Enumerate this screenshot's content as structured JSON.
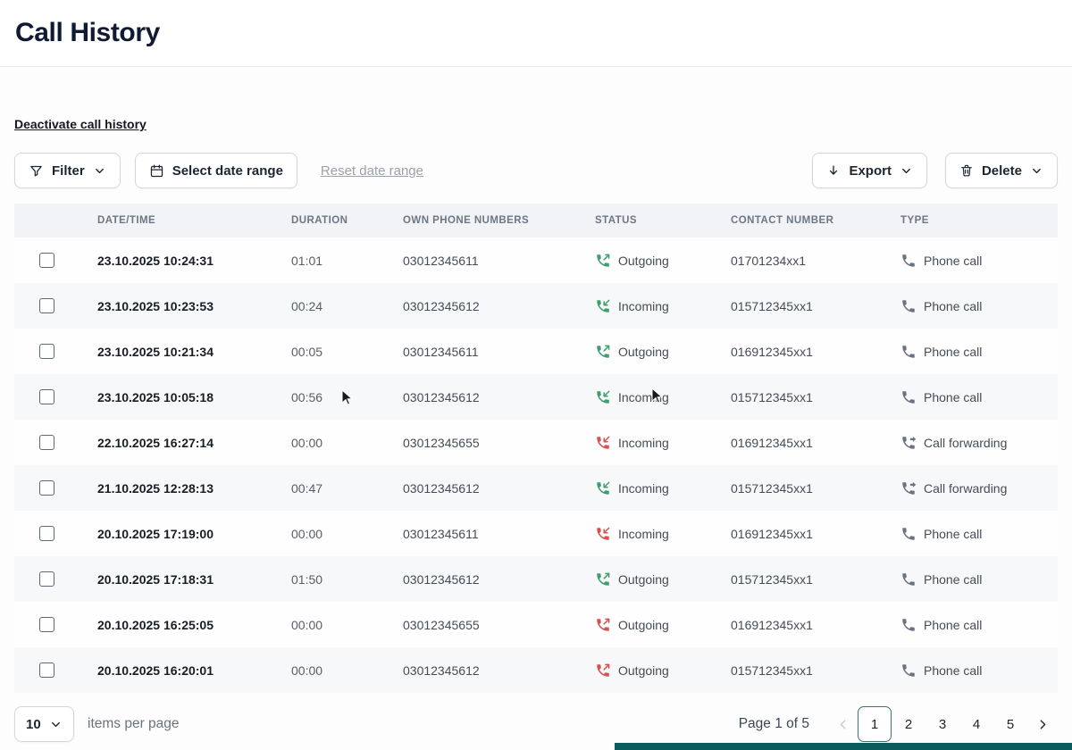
{
  "header": {
    "title": "Call History"
  },
  "actions": {
    "deactivate_link": "Deactivate call history",
    "filter": "Filter",
    "select_date_range": "Select date range",
    "reset_date_range": "Reset date range",
    "export": "Export",
    "delete": "Delete"
  },
  "table": {
    "columns": [
      "DATE/TIME",
      "DURATION",
      "OWN PHONE NUMBERS",
      "STATUS",
      "CONTACT NUMBER",
      "TYPE"
    ],
    "rows": [
      {
        "datetime": "23.10.2025 10:24:31",
        "duration": "01:01",
        "own_number": "03012345611",
        "status": "Outgoing",
        "direction": "outgoing",
        "status_color": "green",
        "contact_number": "01701234xx1",
        "type": "Phone call",
        "type_icon": "phone-call"
      },
      {
        "datetime": "23.10.2025 10:23:53",
        "duration": "00:24",
        "own_number": "03012345612",
        "status": "Incoming",
        "direction": "incoming",
        "status_color": "green",
        "contact_number": "015712345xx1",
        "type": "Phone call",
        "type_icon": "phone-call"
      },
      {
        "datetime": "23.10.2025 10:21:34",
        "duration": "00:05",
        "own_number": "03012345611",
        "status": "Outgoing",
        "direction": "outgoing",
        "status_color": "green",
        "contact_number": "016912345xx1",
        "type": "Phone call",
        "type_icon": "phone-call"
      },
      {
        "datetime": "23.10.2025 10:05:18",
        "duration": "00:56",
        "own_number": "03012345612",
        "status": "Incoming",
        "direction": "incoming",
        "status_color": "green",
        "contact_number": "015712345xx1",
        "type": "Phone call",
        "type_icon": "phone-call"
      },
      {
        "datetime": "22.10.2025 16:27:14",
        "duration": "00:00",
        "own_number": "03012345655",
        "status": "Incoming",
        "direction": "incoming",
        "status_color": "red",
        "contact_number": "016912345xx1",
        "type": "Call forwarding",
        "type_icon": "call-forwarding"
      },
      {
        "datetime": "21.10.2025 12:28:13",
        "duration": "00:47",
        "own_number": "03012345612",
        "status": "Incoming",
        "direction": "incoming",
        "status_color": "green",
        "contact_number": "015712345xx1",
        "type": "Call forwarding",
        "type_icon": "call-forwarding"
      },
      {
        "datetime": "20.10.2025 17:19:00",
        "duration": "00:00",
        "own_number": "03012345611",
        "status": "Incoming",
        "direction": "incoming",
        "status_color": "red",
        "contact_number": "016912345xx1",
        "type": "Phone call",
        "type_icon": "phone-call"
      },
      {
        "datetime": "20.10.2025 17:18:31",
        "duration": "01:50",
        "own_number": "03012345612",
        "status": "Outgoing",
        "direction": "outgoing",
        "status_color": "green",
        "contact_number": "015712345xx1",
        "type": "Phone call",
        "type_icon": "phone-call"
      },
      {
        "datetime": "20.10.2025 16:25:05",
        "duration": "00:00",
        "own_number": "03012345655",
        "status": "Outgoing",
        "direction": "outgoing",
        "status_color": "red",
        "contact_number": "016912345xx1",
        "type": "Phone call",
        "type_icon": "phone-call"
      },
      {
        "datetime": "20.10.2025 16:20:01",
        "duration": "00:00",
        "own_number": "03012345612",
        "status": "Outgoing",
        "direction": "outgoing",
        "status_color": "red",
        "contact_number": "015712345xx1",
        "type": "Phone call",
        "type_icon": "phone-call"
      }
    ]
  },
  "pagination": {
    "per_page": "10",
    "items_label": "items per page",
    "page_info": "Page 1 of 5",
    "pages": [
      "1",
      "2",
      "3",
      "4",
      "5"
    ],
    "active_page": "1"
  },
  "colors": {
    "title": "#101b33",
    "status-green": "#3f9d6f",
    "status-red": "#d95050",
    "accent-bar": "#0b5c5c",
    "active-border": "#3e6e78"
  }
}
